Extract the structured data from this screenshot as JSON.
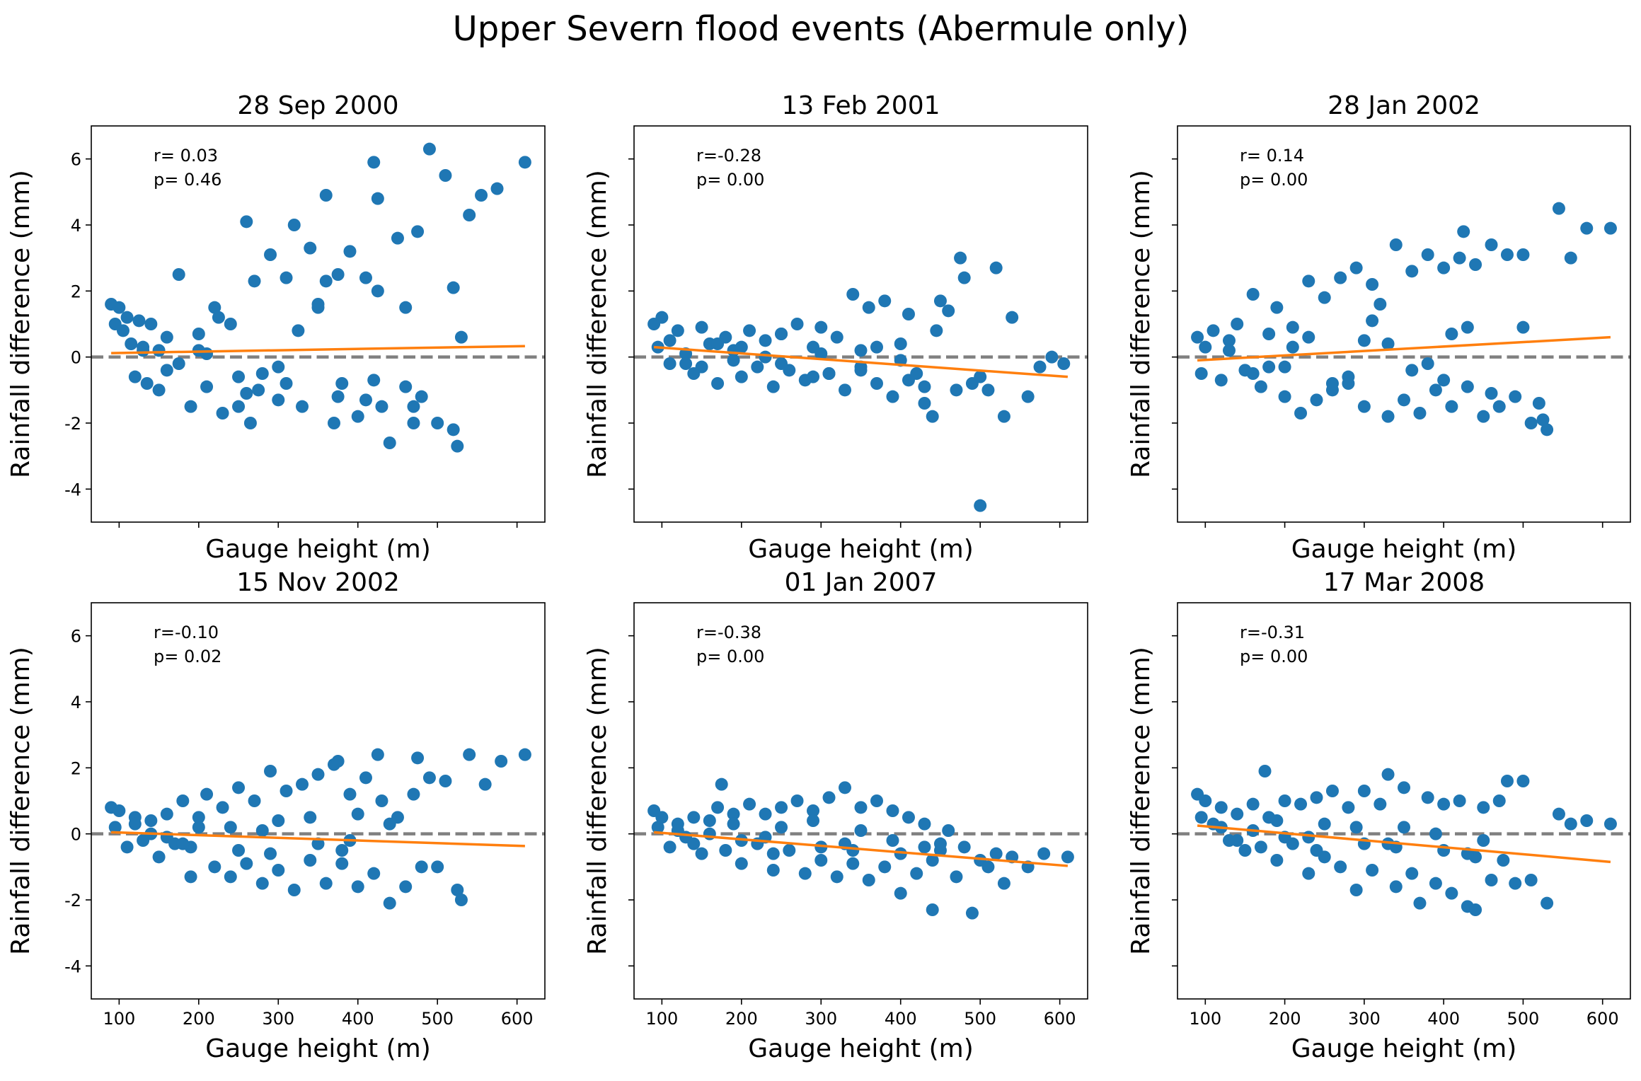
{
  "title": "Upper Severn flood events (Abermule only)",
  "style": {
    "point_color": "#1f77b4",
    "fit_color": "#ff7f0e",
    "zero_line_color": "#808080"
  },
  "chart_data": [
    {
      "type": "scatter",
      "title": "28 Sep 2000",
      "xlabel": "Gauge height (m)",
      "ylabel": "Rainfall difference (mm)",
      "xlim": [
        65,
        635
      ],
      "ylim": [
        -5,
        7
      ],
      "xticks": [
        100,
        200,
        300,
        400,
        500,
        600
      ],
      "yticks": [
        -4,
        -2,
        0,
        2,
        4,
        6
      ],
      "show_xticklabels": false,
      "show_yticklabels": true,
      "stats": {
        "r": "r= 0.03",
        "p": "p= 0.46"
      },
      "fit": {
        "x": [
          90,
          610
        ],
        "y": [
          0.12,
          0.33
        ]
      },
      "points": {
        "x": [
          90,
          95,
          100,
          105,
          110,
          115,
          120,
          125,
          130,
          135,
          140,
          150,
          160,
          175,
          190,
          200,
          210,
          220,
          230,
          240,
          250,
          260,
          265,
          270,
          280,
          290,
          300,
          310,
          320,
          330,
          340,
          350,
          360,
          370,
          375,
          380,
          390,
          400,
          410,
          420,
          425,
          430,
          440,
          450,
          460,
          470,
          475,
          480,
          490,
          500,
          510,
          520,
          525,
          530,
          540,
          555,
          575,
          610,
          150,
          200,
          250,
          300,
          350,
          420,
          130,
          175,
          225,
          275,
          325,
          375,
          425,
          470,
          160,
          210,
          260,
          310,
          360,
          410,
          460,
          520
        ],
        "y": [
          1.6,
          1.0,
          1.5,
          0.8,
          1.2,
          0.4,
          -0.6,
          1.1,
          0.2,
          -0.8,
          1.0,
          -1.0,
          0.6,
          2.5,
          -1.5,
          0.2,
          -0.9,
          1.5,
          -1.7,
          1.0,
          -1.5,
          4.1,
          -2.0,
          2.3,
          -0.5,
          3.1,
          -1.3,
          2.4,
          4.0,
          -1.5,
          3.3,
          1.5,
          4.9,
          -2.0,
          2.5,
          -0.8,
          3.2,
          -1.8,
          2.4,
          5.9,
          4.8,
          -1.5,
          -2.6,
          3.6,
          1.5,
          -2.0,
          3.8,
          -1.2,
          6.3,
          -2.0,
          5.5,
          -2.2,
          -2.7,
          0.6,
          4.3,
          4.9,
          5.1,
          5.9,
          0.2,
          0.7,
          -0.6,
          -0.3,
          1.6,
          -0.7,
          0.3,
          -0.2,
          1.2,
          -1.0,
          0.8,
          -1.2,
          2.0,
          -1.5,
          -0.4,
          0.1,
          -1.1,
          -0.8,
          2.3,
          -1.3,
          -0.9,
          2.1
        ]
      }
    },
    {
      "type": "scatter",
      "title": "13 Feb 2001",
      "xlabel": "Gauge height (m)",
      "ylabel": "Rainfall difference (mm)",
      "xlim": [
        65,
        635
      ],
      "ylim": [
        -5,
        7
      ],
      "xticks": [
        100,
        200,
        300,
        400,
        500,
        600
      ],
      "yticks": [
        -4,
        -2,
        0,
        2,
        4,
        6
      ],
      "show_xticklabels": false,
      "show_yticklabels": false,
      "stats": {
        "r": "r=-0.28",
        "p": "p= 0.00"
      },
      "fit": {
        "x": [
          90,
          610
        ],
        "y": [
          0.3,
          -0.6
        ]
      },
      "points": {
        "x": [
          90,
          95,
          100,
          110,
          120,
          130,
          140,
          150,
          160,
          170,
          180,
          190,
          200,
          210,
          220,
          230,
          240,
          250,
          260,
          270,
          280,
          290,
          300,
          310,
          320,
          330,
          340,
          350,
          360,
          370,
          380,
          390,
          400,
          410,
          420,
          430,
          440,
          445,
          450,
          460,
          470,
          475,
          480,
          490,
          500,
          510,
          520,
          530,
          540,
          560,
          575,
          590,
          605,
          110,
          150,
          200,
          250,
          300,
          350,
          400,
          170,
          230,
          290,
          350,
          410,
          130,
          190,
          250,
          310,
          370,
          430,
          500
        ],
        "y": [
          1.0,
          0.3,
          1.2,
          -0.2,
          0.8,
          0.1,
          -0.5,
          0.9,
          0.4,
          -0.8,
          0.6,
          0.2,
          -0.6,
          0.8,
          -0.3,
          0.5,
          -0.9,
          0.7,
          -0.4,
          1.0,
          -0.7,
          0.3,
          0.9,
          -0.5,
          0.6,
          -1.0,
          1.9,
          -0.3,
          1.5,
          -0.8,
          1.7,
          -1.2,
          0.4,
          1.3,
          -0.5,
          -1.4,
          -1.8,
          0.8,
          1.7,
          1.4,
          -1.0,
          3.0,
          2.4,
          -0.8,
          -4.5,
          -1.0,
          2.7,
          -1.8,
          1.2,
          -1.2,
          -0.3,
          0.0,
          -0.2,
          0.5,
          -0.3,
          0.3,
          -0.2,
          0.1,
          -0.4,
          -0.1,
          0.4,
          0.0,
          -0.6,
          0.2,
          -0.7,
          -0.2,
          -0.1,
          0.7,
          -0.5,
          0.3,
          -0.9,
          -0.6
        ]
      }
    },
    {
      "type": "scatter",
      "title": "28 Jan 2002",
      "xlabel": "Gauge height (m)",
      "ylabel": "Rainfall difference (mm)",
      "xlim": [
        65,
        635
      ],
      "ylim": [
        -5,
        7
      ],
      "xticks": [
        100,
        200,
        300,
        400,
        500,
        600
      ],
      "yticks": [
        -4,
        -2,
        0,
        2,
        4,
        6
      ],
      "show_xticklabels": false,
      "show_yticklabels": false,
      "stats": {
        "r": "r= 0.14",
        "p": "p= 0.00"
      },
      "fit": {
        "x": [
          90,
          610
        ],
        "y": [
          -0.1,
          0.6
        ]
      },
      "points": {
        "x": [
          90,
          95,
          100,
          110,
          120,
          130,
          140,
          150,
          160,
          170,
          180,
          190,
          200,
          210,
          220,
          230,
          240,
          250,
          260,
          270,
          280,
          290,
          300,
          310,
          320,
          330,
          340,
          350,
          360,
          370,
          380,
          390,
          400,
          410,
          420,
          425,
          430,
          440,
          450,
          460,
          470,
          480,
          490,
          500,
          510,
          520,
          525,
          530,
          545,
          560,
          580,
          610,
          130,
          180,
          230,
          280,
          330,
          380,
          430,
          160,
          210,
          260,
          310,
          360,
          410,
          460,
          200,
          300,
          400,
          500
        ],
        "y": [
          0.6,
          -0.5,
          0.3,
          0.8,
          -0.7,
          0.5,
          1.0,
          -0.4,
          1.9,
          -0.9,
          0.7,
          1.5,
          -1.2,
          0.9,
          -1.7,
          2.3,
          -1.3,
          1.8,
          -1.0,
          2.4,
          -0.8,
          2.7,
          -1.5,
          2.2,
          1.6,
          -1.8,
          3.4,
          -1.3,
          2.6,
          -1.7,
          3.1,
          -1.0,
          2.7,
          -1.5,
          3.0,
          3.8,
          -0.9,
          2.8,
          -1.8,
          3.4,
          -1.5,
          3.1,
          -1.2,
          3.1,
          -2.0,
          -1.4,
          -1.9,
          -2.2,
          4.5,
          3.0,
          3.9,
          3.9,
          0.2,
          -0.3,
          0.6,
          -0.6,
          0.4,
          -0.2,
          0.9,
          -0.5,
          0.3,
          -0.8,
          1.1,
          -0.4,
          0.7,
          -1.1,
          -0.3,
          0.5,
          -0.7,
          0.9
        ]
      }
    },
    {
      "type": "scatter",
      "title": "15 Nov 2002",
      "xlabel": "Gauge height (m)",
      "ylabel": "Rainfall difference (mm)",
      "xlim": [
        65,
        635
      ],
      "ylim": [
        -5,
        7
      ],
      "xticks": [
        100,
        200,
        300,
        400,
        500,
        600
      ],
      "yticks": [
        -4,
        -2,
        0,
        2,
        4,
        6
      ],
      "show_xticklabels": true,
      "show_yticklabels": true,
      "stats": {
        "r": "r=-0.10",
        "p": "p= 0.02"
      },
      "fit": {
        "x": [
          90,
          610
        ],
        "y": [
          0.05,
          -0.37
        ]
      },
      "points": {
        "x": [
          90,
          95,
          100,
          110,
          120,
          130,
          140,
          150,
          160,
          170,
          180,
          190,
          200,
          210,
          220,
          230,
          240,
          250,
          260,
          270,
          280,
          290,
          300,
          310,
          320,
          330,
          340,
          350,
          360,
          370,
          375,
          380,
          390,
          400,
          410,
          420,
          425,
          430,
          440,
          450,
          460,
          470,
          475,
          480,
          490,
          500,
          510,
          525,
          530,
          540,
          560,
          580,
          610,
          120,
          160,
          200,
          250,
          300,
          350,
          400,
          140,
          190,
          240,
          290,
          340,
          390,
          440,
          180,
          280,
          380
        ],
        "y": [
          0.8,
          0.2,
          0.7,
          -0.4,
          0.5,
          -0.2,
          0.4,
          -0.7,
          0.6,
          -0.3,
          1.0,
          -1.3,
          0.5,
          1.2,
          -1.0,
          0.8,
          -1.3,
          1.4,
          -0.9,
          1.0,
          -1.5,
          1.9,
          -1.1,
          1.3,
          -1.7,
          1.5,
          -0.8,
          1.8,
          -1.5,
          2.1,
          2.2,
          -0.9,
          1.2,
          -1.6,
          1.7,
          -1.2,
          2.4,
          1.0,
          -2.1,
          0.5,
          -1.6,
          1.2,
          2.3,
          -1.0,
          1.7,
          -1.0,
          1.6,
          -1.7,
          -2.0,
          2.4,
          1.5,
          2.2,
          2.4,
          0.3,
          -0.1,
          0.2,
          -0.5,
          0.4,
          -0.3,
          0.6,
          0.0,
          -0.4,
          0.2,
          -0.6,
          0.5,
          -0.2,
          0.3,
          -0.3,
          0.1,
          -0.5
        ]
      }
    },
    {
      "type": "scatter",
      "title": "01 Jan 2007",
      "xlabel": "Gauge height (m)",
      "ylabel": "Rainfall difference (mm)",
      "xlim": [
        65,
        635
      ],
      "ylim": [
        -5,
        7
      ],
      "xticks": [
        100,
        200,
        300,
        400,
        500,
        600
      ],
      "yticks": [
        -4,
        -2,
        0,
        2,
        4,
        6
      ],
      "show_xticklabels": true,
      "show_yticklabels": false,
      "stats": {
        "r": "r=-0.38",
        "p": "p= 0.00"
      },
      "fit": {
        "x": [
          90,
          610
        ],
        "y": [
          0.05,
          -0.97
        ]
      },
      "points": {
        "x": [
          90,
          95,
          100,
          110,
          120,
          130,
          140,
          150,
          160,
          170,
          175,
          180,
          190,
          200,
          210,
          220,
          230,
          240,
          250,
          260,
          270,
          280,
          290,
          300,
          310,
          320,
          330,
          340,
          350,
          360,
          370,
          380,
          390,
          400,
          410,
          420,
          430,
          440,
          450,
          460,
          470,
          480,
          490,
          500,
          510,
          520,
          530,
          540,
          560,
          580,
          610,
          120,
          160,
          200,
          250,
          300,
          350,
          400,
          450,
          140,
          190,
          240,
          290,
          340,
          390,
          440,
          230,
          330,
          430
        ],
        "y": [
          0.7,
          0.2,
          0.5,
          -0.4,
          0.3,
          -0.1,
          0.5,
          -0.6,
          0.4,
          0.8,
          1.5,
          -0.5,
          0.6,
          -0.9,
          0.9,
          -0.3,
          0.6,
          -1.1,
          0.8,
          -0.5,
          1.0,
          -1.2,
          0.7,
          -0.8,
          1.1,
          -1.3,
          1.4,
          -0.9,
          0.8,
          -1.4,
          1.0,
          -1.0,
          0.7,
          -1.8,
          0.5,
          -1.2,
          0.3,
          -2.3,
          -0.5,
          0.1,
          -1.3,
          -0.4,
          -2.4,
          -0.8,
          -1.0,
          -0.6,
          -1.5,
          -0.7,
          -1.0,
          -0.6,
          -0.7,
          0.1,
          0.0,
          -0.2,
          0.2,
          -0.4,
          0.1,
          -0.6,
          -0.3,
          -0.3,
          0.3,
          -0.6,
          0.4,
          -0.5,
          -0.2,
          -0.8,
          -0.1,
          -0.3,
          -0.4
        ]
      }
    },
    {
      "type": "scatter",
      "title": "17 Mar 2008",
      "xlabel": "Gauge height (m)",
      "ylabel": "Rainfall difference (mm)",
      "xlim": [
        65,
        635
      ],
      "ylim": [
        -5,
        7
      ],
      "xticks": [
        100,
        200,
        300,
        400,
        500,
        600
      ],
      "yticks": [
        -4,
        -2,
        0,
        2,
        4,
        6
      ],
      "show_xticklabels": true,
      "show_yticklabels": false,
      "stats": {
        "r": "r=-0.31",
        "p": "p= 0.00"
      },
      "fit": {
        "x": [
          90,
          610
        ],
        "y": [
          0.25,
          -0.85
        ]
      },
      "points": {
        "x": [
          90,
          95,
          100,
          110,
          120,
          130,
          140,
          150,
          160,
          170,
          175,
          180,
          190,
          200,
          210,
          220,
          230,
          240,
          250,
          260,
          270,
          280,
          290,
          300,
          310,
          320,
          330,
          340,
          350,
          360,
          370,
          380,
          390,
          400,
          410,
          420,
          430,
          440,
          450,
          460,
          470,
          475,
          480,
          490,
          500,
          510,
          530,
          545,
          560,
          580,
          610,
          120,
          160,
          200,
          250,
          300,
          350,
          400,
          450,
          140,
          190,
          240,
          290,
          340,
          390,
          440,
          230,
          330,
          430
        ],
        "y": [
          1.2,
          0.5,
          1.0,
          0.3,
          0.8,
          -0.2,
          0.6,
          -0.5,
          0.9,
          -0.4,
          1.9,
          0.5,
          -0.8,
          1.0,
          -0.3,
          0.9,
          -1.2,
          1.1,
          -0.7,
          1.3,
          -1.0,
          0.8,
          -1.7,
          1.3,
          -1.1,
          0.9,
          1.8,
          -1.6,
          1.4,
          -1.2,
          -2.1,
          1.1,
          -1.5,
          0.9,
          -1.8,
          1.0,
          -2.2,
          -2.3,
          0.8,
          -1.4,
          1.0,
          -0.8,
          1.6,
          -1.5,
          1.6,
          -1.4,
          -2.1,
          0.6,
          0.3,
          0.4,
          0.3,
          0.2,
          0.1,
          -0.1,
          0.3,
          -0.3,
          0.2,
          -0.5,
          -0.2,
          -0.2,
          0.4,
          -0.5,
          0.2,
          -0.4,
          0.0,
          -0.7,
          -0.1,
          -0.3,
          -0.6
        ]
      }
    }
  ]
}
